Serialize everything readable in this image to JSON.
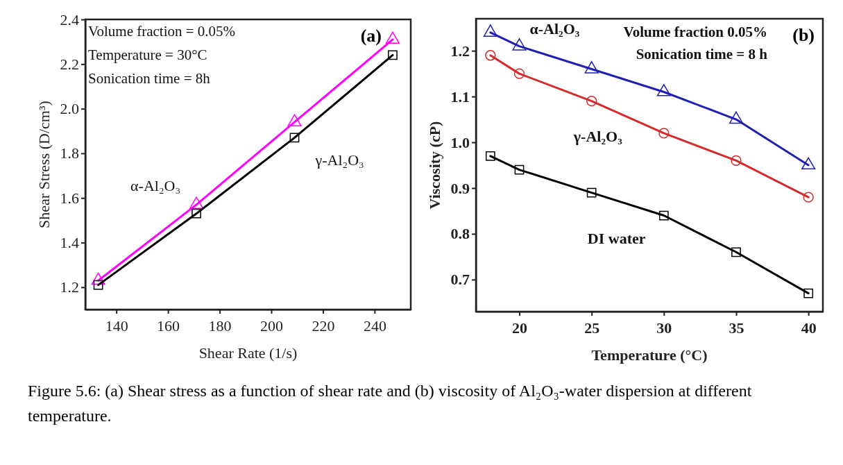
{
  "chart_data": [
    {
      "type": "line",
      "title": "(a)",
      "xlabel": "Shear Rate (1/s)",
      "ylabel": "Shear Stress (D/cm³)",
      "x": [
        133,
        171,
        209,
        247
      ],
      "xlim": [
        128,
        254
      ],
      "xticks": [
        140,
        160,
        180,
        200,
        220,
        240
      ],
      "ylim": [
        1.1,
        2.4
      ],
      "yticks": [
        1.2,
        1.4,
        1.6,
        1.8,
        {
          "value": 2,
          "label": "2.0"
        },
        2.2,
        2.4
      ],
      "grid": false,
      "line_style": "solid",
      "series": [
        {
          "name": "α-Al₂O₃",
          "color": "#ff00ff",
          "marker": "triangle",
          "values": [
            1.23,
            1.57,
            1.94,
            2.31
          ]
        },
        {
          "name": "γ-Al₂O₃",
          "color": "#000000",
          "marker": "square",
          "values": [
            1.21,
            1.53,
            1.87,
            2.24
          ]
        }
      ],
      "annotations": [
        "Volume fraction = 0.05%",
        "Temperature = 30°C",
        "Sonication time = 8h"
      ]
    },
    {
      "type": "line",
      "title": "(b)",
      "xlabel": "Temperature (°C)",
      "ylabel": "Viscosity (cP)",
      "x": [
        18,
        20,
        25,
        30,
        35,
        40
      ],
      "xlim": [
        17,
        41
      ],
      "xticks": [
        20,
        25,
        30,
        35,
        40
      ],
      "ylim": [
        0.63,
        1.27
      ],
      "yticks": [
        0.7,
        0.8,
        0.9,
        {
          "value": 1,
          "label": "1.0"
        },
        1.1,
        1.2
      ],
      "grid": false,
      "line_style": "solid",
      "series": [
        {
          "name": "α-Al₂O₃",
          "color": "#1f1fb4",
          "marker": "triangle",
          "values": [
            1.24,
            1.21,
            1.16,
            1.11,
            1.05,
            0.95
          ]
        },
        {
          "name": "γ-Al₂O₃",
          "color": "#d42a2a",
          "marker": "circle",
          "values": [
            1.19,
            1.15,
            1.09,
            1.02,
            0.96,
            0.88
          ]
        },
        {
          "name": "DI water",
          "color": "#000000",
          "marker": "square",
          "values": [
            0.97,
            0.94,
            0.89,
            0.84,
            0.76,
            0.67
          ]
        }
      ],
      "annotations": [
        "Volume fraction 0.05%",
        "Sonication time = 8 h",
        "Figure 5.6: (a) Shear stress as a function of shear rate and (b) viscosity of Al₂O₃-water dispersion at different temperature."
      ]
    }
  ]
}
